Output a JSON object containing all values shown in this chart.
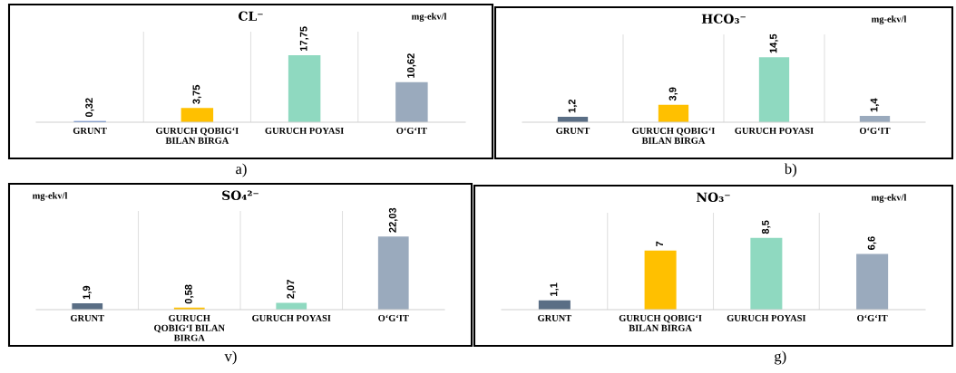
{
  "chart_data": [
    {
      "type": "bar",
      "title": "CL⁻",
      "categories": [
        "GRUNT",
        "GURUCH QOBIG‘I\nBILAN BIRGA",
        "GURUCH POYASI",
        "O‘G‘IT"
      ],
      "values": [
        0.32,
        3.75,
        17.75,
        10.62
      ],
      "value_labels": [
        "0,32",
        "3,75",
        "17,75",
        "10,62"
      ],
      "colors": [
        "#4472c4",
        "#ffc000",
        "#8fd9c0",
        "#9aaabd"
      ],
      "annotations": [
        "mg-ekv/l",
        "a)"
      ]
    },
    {
      "type": "bar",
      "title": "HCO₃⁻",
      "categories": [
        "GRUNT",
        "GURUCH QOBIG‘I\nBILAN BIRGA",
        "GURUCH POYASI",
        "O‘G‘IT"
      ],
      "values": [
        1.2,
        3.9,
        14.5,
        1.4
      ],
      "value_labels": [
        "1,2",
        "3,9",
        "14,5",
        "1,4"
      ],
      "colors": [
        "#5a6e85",
        "#ffc000",
        "#8fd9c0",
        "#9aaabd"
      ],
      "annotations": [
        "mg-ekv/l",
        "b)"
      ]
    },
    {
      "type": "bar",
      "title": "SO₄²⁻",
      "categories": [
        "GRUNT",
        "GURUCH\nQOBIG‘I BILAN\nBIRGA",
        "GURUCH POYASI",
        "O‘G‘IT"
      ],
      "values": [
        1.9,
        0.58,
        2.07,
        22.03
      ],
      "value_labels": [
        "1,9",
        "0,58",
        "2,07",
        "22,03"
      ],
      "colors": [
        "#5a6e85",
        "#ffc000",
        "#8fd9c0",
        "#9aaabd"
      ],
      "annotations": [
        "mg-ekv/l",
        "v)"
      ]
    },
    {
      "type": "bar",
      "title": "NO₃⁻",
      "categories": [
        "GRUNT",
        "GURUCH QOBIG‘I\nBILAN BIRGA",
        "GURUCH POYASI",
        "O‘G‘IT"
      ],
      "values": [
        1.1,
        7,
        8.5,
        6.6
      ],
      "value_labels": [
        "1,1",
        "7",
        "8,5",
        "6,6"
      ],
      "colors": [
        "#5a6e85",
        "#ffc000",
        "#8fd9c0",
        "#9aaabd"
      ],
      "annotations": [
        "mg-ekv/l",
        "g)"
      ]
    }
  ]
}
